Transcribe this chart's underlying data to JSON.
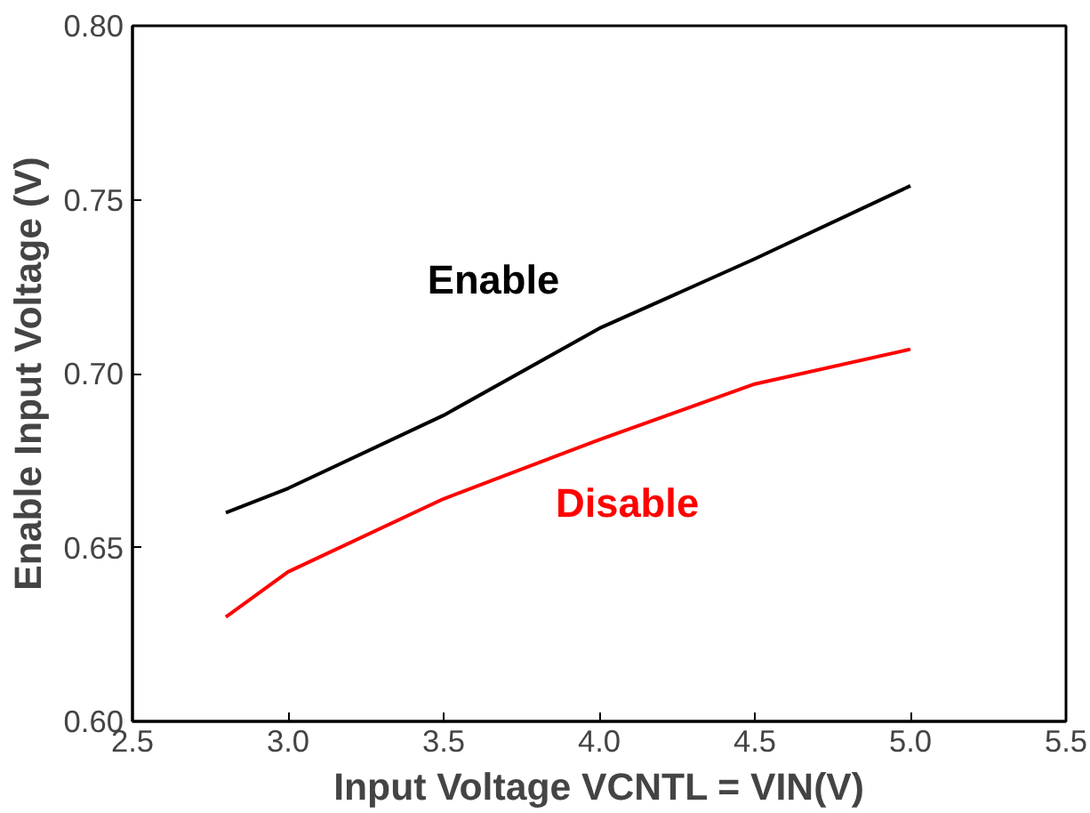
{
  "chart_data": {
    "type": "line",
    "xlabel": "Input Voltage VCNTL = VIN(V)",
    "ylabel": "Enable Input Voltage (V)",
    "xlim": [
      2.5,
      5.5
    ],
    "xticks": [
      {
        "value": 2.5,
        "label": "2.5"
      },
      {
        "value": 3,
        "label": "3.0"
      },
      {
        "value": 3.5,
        "label": "3.5"
      },
      {
        "value": 4,
        "label": "4.0"
      },
      {
        "value": 4.5,
        "label": "4.5"
      },
      {
        "value": 5,
        "label": "5.0"
      },
      {
        "value": 5.5,
        "label": "5.5"
      }
    ],
    "ylim": [
      0.6,
      0.8
    ],
    "yticks": [
      {
        "value": 0.6,
        "label": "0.60"
      },
      {
        "value": 0.65,
        "label": "0.65"
      },
      {
        "value": 0.7,
        "label": "0.70"
      },
      {
        "value": 0.75,
        "label": "0.75"
      },
      {
        "value": 0.8,
        "label": "0.80"
      }
    ],
    "x": [
      2.8,
      3.0,
      3.5,
      4.0,
      4.5,
      5.0
    ],
    "series": [
      {
        "name": "Enable",
        "color": "#000000",
        "values": [
          0.66,
          0.667,
          0.688,
          0.713,
          0.733,
          0.754
        ]
      },
      {
        "name": "Disable",
        "color": "#ff0000",
        "values": [
          0.63,
          0.643,
          0.664,
          0.681,
          0.697,
          0.707
        ]
      }
    ],
    "grid": false,
    "legend": false
  }
}
